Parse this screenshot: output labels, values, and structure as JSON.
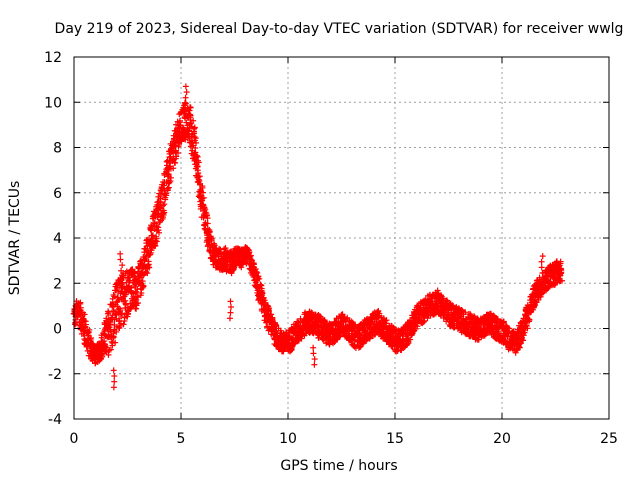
{
  "chart_data": {
    "type": "scatter",
    "title": "Day 219 of 2023, Sidereal Day-to-day VTEC variation (SDTVAR) for receiver wwlg",
    "xlabel": "GPS time / hours",
    "ylabel": "SDTVAR / TECUs",
    "xlim": [
      0,
      25
    ],
    "ylim": [
      -4,
      12
    ],
    "xticks": [
      0,
      5,
      10,
      15,
      20,
      25
    ],
    "yticks": [
      -4,
      -2,
      0,
      2,
      4,
      6,
      8,
      10,
      12
    ],
    "grid": true,
    "marker": "+",
    "color": "#ff0000",
    "series": [
      {
        "name": "SDTVAR",
        "x": [
          0.0,
          0.2,
          0.4,
          0.6,
          0.8,
          1.0,
          1.2,
          1.4,
          1.6,
          1.8,
          2.0,
          2.2,
          2.4,
          2.6,
          2.8,
          3.0,
          3.2,
          3.4,
          3.6,
          3.8,
          4.0,
          4.2,
          4.4,
          4.6,
          4.8,
          5.0,
          5.2,
          5.4,
          5.6,
          5.8,
          6.0,
          6.2,
          6.4,
          6.6,
          6.8,
          7.0,
          7.2,
          7.4,
          7.6,
          7.8,
          8.0,
          8.2,
          8.4,
          8.6,
          8.8,
          9.0,
          9.2,
          9.4,
          9.6,
          9.8,
          10.0,
          10.2,
          10.4,
          10.6,
          10.8,
          11.0,
          11.2,
          11.4,
          11.6,
          11.8,
          12.0,
          12.2,
          12.4,
          12.6,
          12.8,
          13.0,
          13.2,
          13.4,
          13.6,
          13.8,
          14.0,
          14.2,
          14.4,
          14.6,
          14.8,
          15.0,
          15.2,
          15.4,
          15.6,
          15.8,
          16.0,
          16.2,
          16.4,
          16.6,
          16.8,
          17.0,
          17.2,
          17.4,
          17.6,
          17.8,
          18.0,
          18.2,
          18.4,
          18.6,
          18.8,
          19.0,
          19.2,
          19.4,
          19.6,
          19.8,
          20.0,
          20.2,
          20.4,
          20.6,
          20.8,
          21.0,
          21.2,
          21.4,
          21.6,
          21.8,
          22.0,
          22.2,
          22.4,
          22.6,
          22.8
        ],
        "y": [
          0.5,
          0.8,
          0.3,
          -0.4,
          -0.9,
          -1.2,
          -1.0,
          -0.6,
          -0.2,
          0.3,
          0.8,
          1.2,
          1.5,
          1.8,
          1.6,
          1.9,
          2.5,
          3.2,
          3.8,
          4.5,
          5.2,
          6.0,
          6.8,
          7.6,
          8.3,
          8.8,
          9.2,
          9.0,
          8.2,
          6.8,
          5.5,
          4.4,
          3.6,
          3.2,
          3.0,
          3.1,
          3.0,
          2.9,
          3.2,
          3.1,
          3.3,
          3.0,
          2.5,
          1.8,
          1.2,
          0.6,
          0.2,
          -0.2,
          -0.5,
          -0.7,
          -0.6,
          -0.4,
          -0.2,
          0.0,
          0.2,
          0.3,
          0.2,
          0.1,
          0.0,
          -0.2,
          -0.3,
          -0.1,
          0.1,
          0.2,
          0.0,
          -0.2,
          -0.4,
          -0.3,
          -0.1,
          0.0,
          0.2,
          0.3,
          0.1,
          -0.1,
          -0.3,
          -0.5,
          -0.6,
          -0.4,
          -0.2,
          0.2,
          0.5,
          0.7,
          0.8,
          1.0,
          1.1,
          1.2,
          1.0,
          0.8,
          0.6,
          0.5,
          0.4,
          0.3,
          0.2,
          0.1,
          0.0,
          0.0,
          0.1,
          0.2,
          0.1,
          0.0,
          -0.1,
          -0.3,
          -0.5,
          -0.6,
          -0.4,
          0.0,
          0.6,
          1.2,
          1.6,
          1.9,
          2.1,
          2.3,
          2.4,
          2.5,
          2.6
        ],
        "spread": [
          0.5,
          0.6,
          0.6,
          0.7,
          0.5,
          0.4,
          0.4,
          0.7,
          1.0,
          1.3,
          1.3,
          1.2,
          1.2,
          1.0,
          1.0,
          0.8,
          0.8,
          0.8,
          0.8,
          0.9,
          0.9,
          0.9,
          0.8,
          0.8,
          0.8,
          0.8,
          0.9,
          0.9,
          0.9,
          0.7,
          0.6,
          0.6,
          0.5,
          0.5,
          0.5,
          0.5,
          0.5,
          0.5,
          0.4,
          0.4,
          0.4,
          0.4,
          0.4,
          0.5,
          0.5,
          0.5,
          0.5,
          0.5,
          0.5,
          0.5,
          0.5,
          0.5,
          0.5,
          0.5,
          0.5,
          0.5,
          0.5,
          0.5,
          0.5,
          0.5,
          0.5,
          0.5,
          0.5,
          0.5,
          0.5,
          0.5,
          0.5,
          0.5,
          0.5,
          0.5,
          0.5,
          0.5,
          0.5,
          0.5,
          0.5,
          0.5,
          0.5,
          0.5,
          0.5,
          0.5,
          0.5,
          0.5,
          0.5,
          0.5,
          0.5,
          0.5,
          0.5,
          0.5,
          0.5,
          0.5,
          0.5,
          0.5,
          0.5,
          0.5,
          0.5,
          0.5,
          0.5,
          0.5,
          0.5,
          0.5,
          0.5,
          0.5,
          0.5,
          0.5,
          0.5,
          0.5,
          0.5,
          0.5,
          0.5,
          0.5,
          0.5,
          0.5,
          0.5,
          0.5,
          0.5
        ],
        "extremes": [
          {
            "x": 1.85,
            "y": -2.6
          },
          {
            "x": 2.2,
            "y": 3.3
          },
          {
            "x": 5.25,
            "y": 10.7
          },
          {
            "x": 7.3,
            "y": 1.2
          },
          {
            "x": 11.2,
            "y": -1.6
          },
          {
            "x": 21.9,
            "y": 3.2
          }
        ]
      }
    ]
  }
}
